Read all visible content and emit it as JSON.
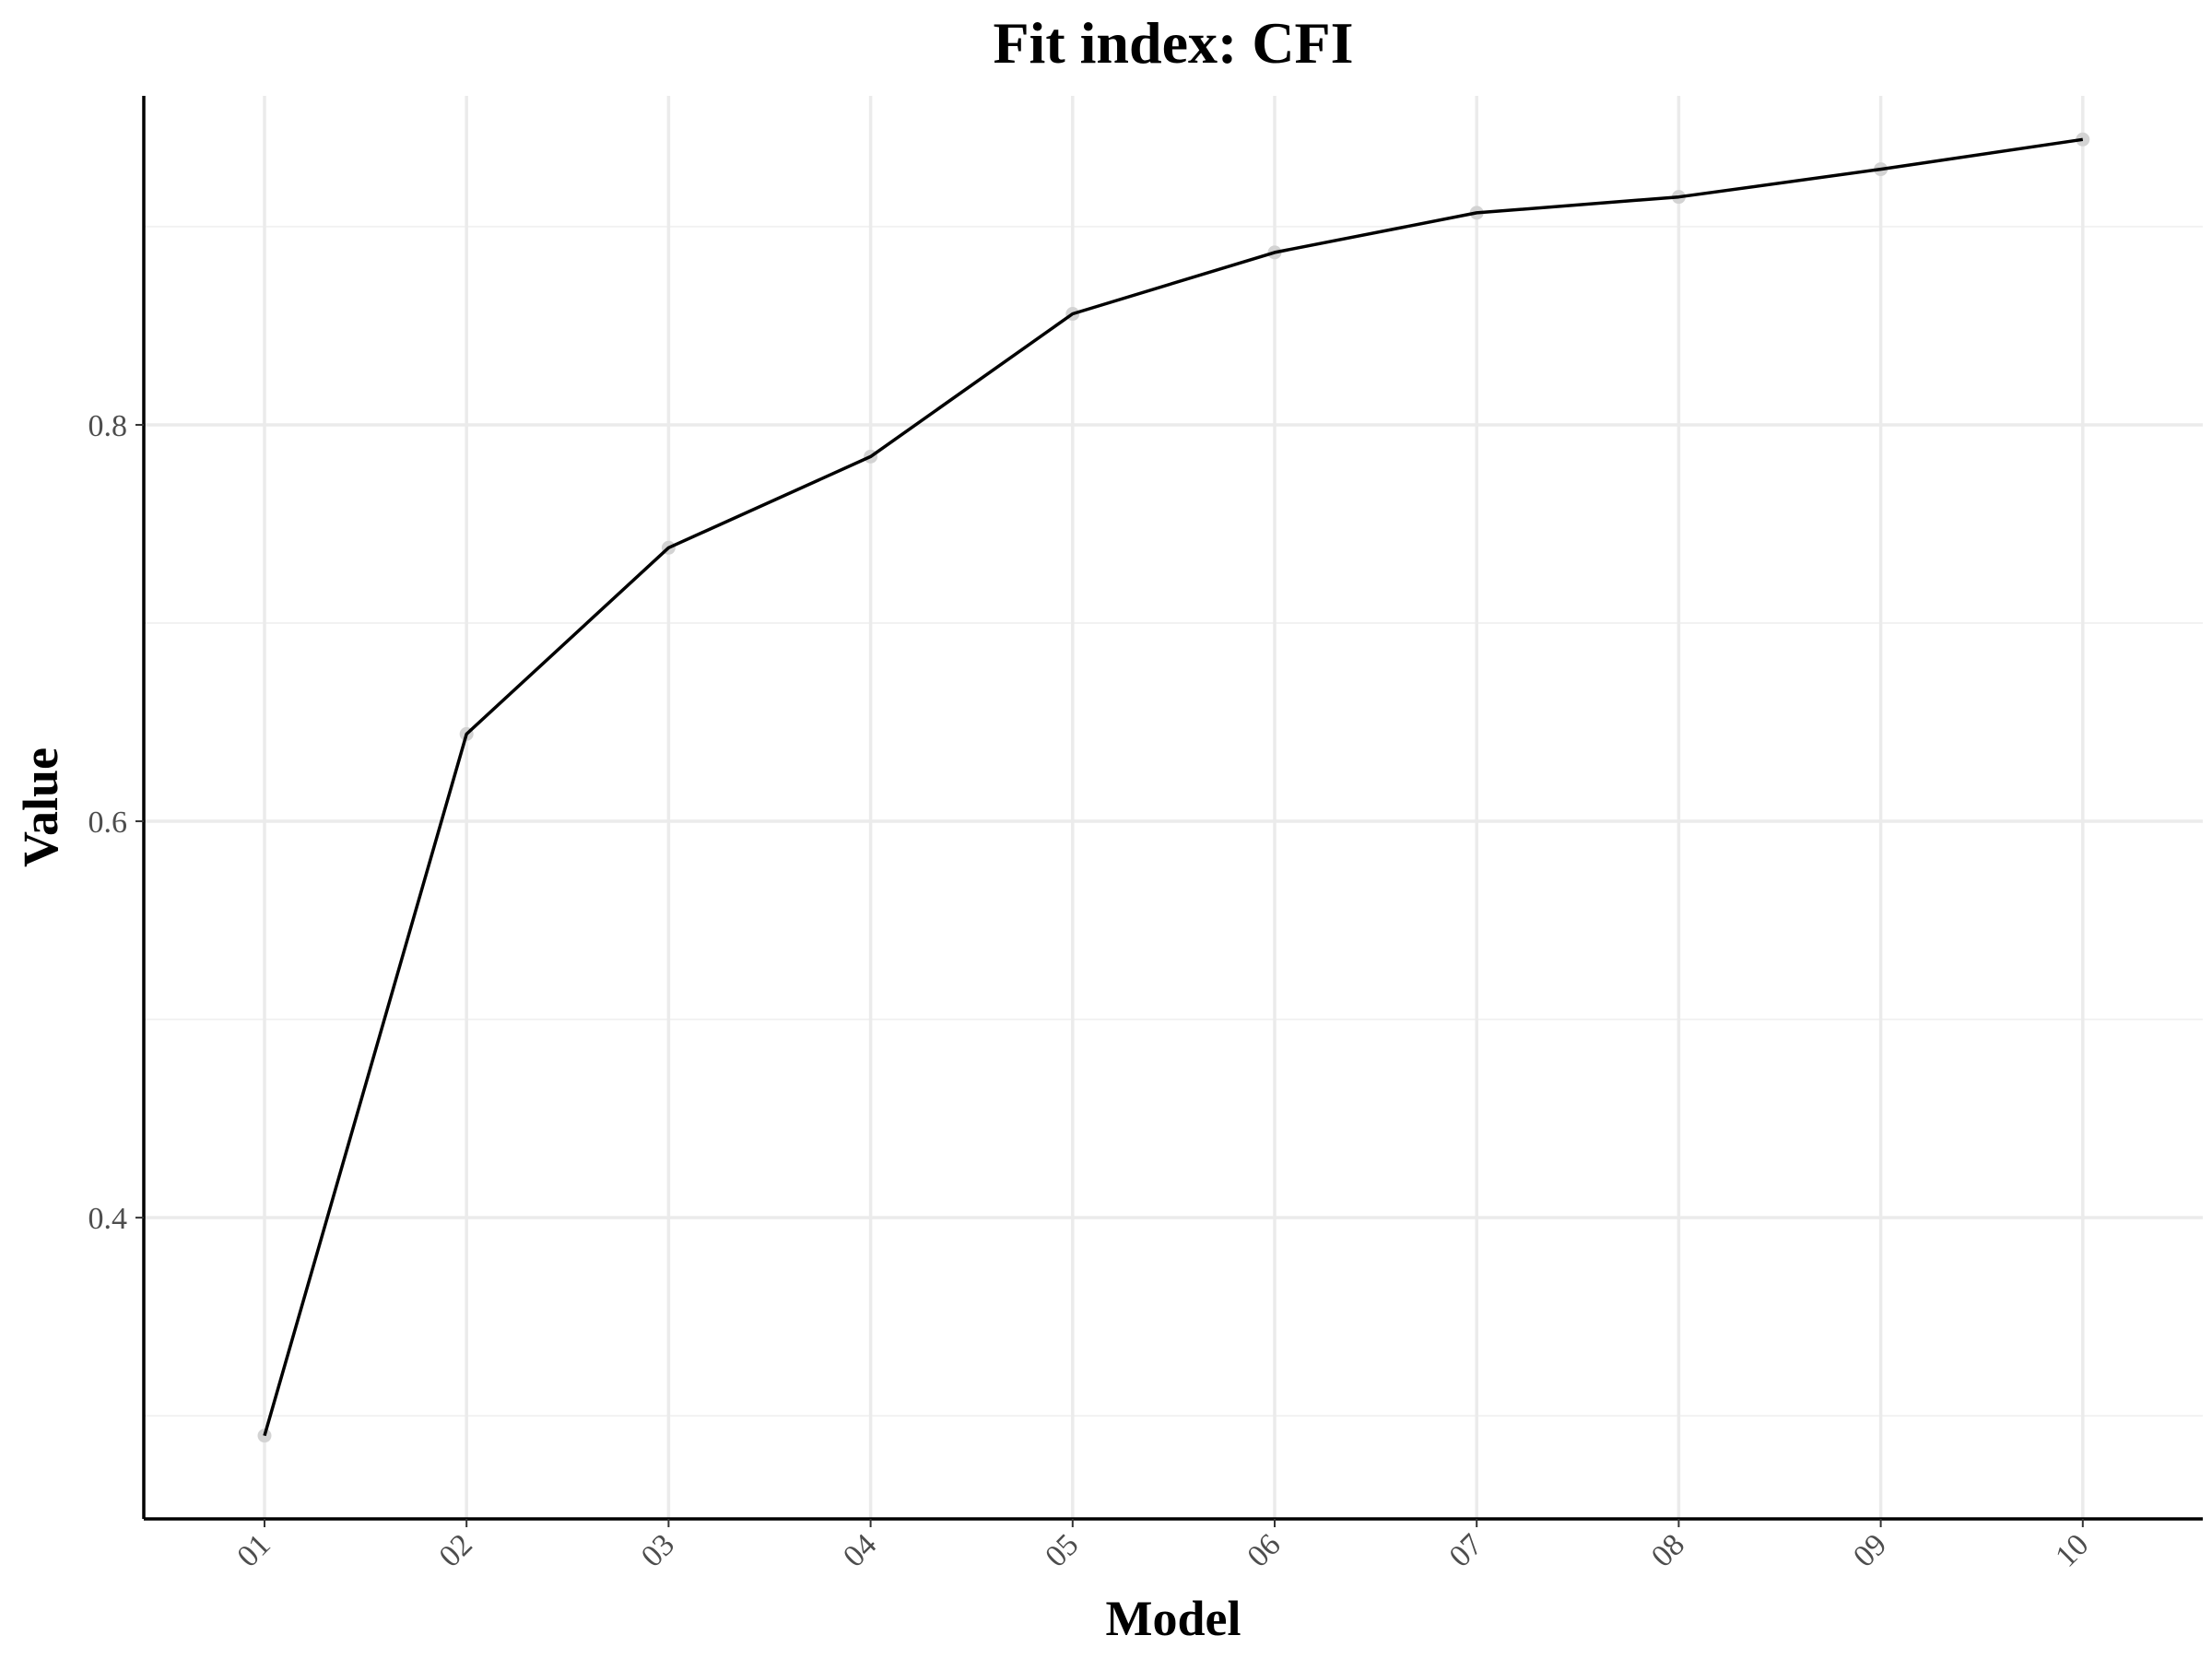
{
  "chart_data": {
    "type": "line",
    "title": "Fit index: CFI",
    "xlabel": "Model",
    "ylabel": "Value",
    "categories": [
      "01",
      "02",
      "03",
      "04",
      "05",
      "06",
      "07",
      "08",
      "09",
      "10"
    ],
    "series": [
      {
        "values": [
          0.29,
          0.644,
          0.738,
          0.784,
          0.856,
          0.887,
          0.907,
          0.915,
          0.929,
          0.944
        ]
      }
    ],
    "y_ticks": [
      {
        "value": 0.4,
        "label": "0.4"
      },
      {
        "value": 0.6,
        "label": "0.6"
      },
      {
        "value": 0.8,
        "label": "0.8"
      }
    ],
    "y_minor_ticks": [
      0.3,
      0.5,
      0.7,
      0.9
    ],
    "ylim": [
      0.248,
      0.966
    ],
    "grid": true,
    "legend": "none",
    "colors": {
      "line": "#000000",
      "point": "#d3d3d3",
      "grid_major": "#ebebeb",
      "grid_minor": "#f2f2f2",
      "axis": "#000000"
    }
  }
}
